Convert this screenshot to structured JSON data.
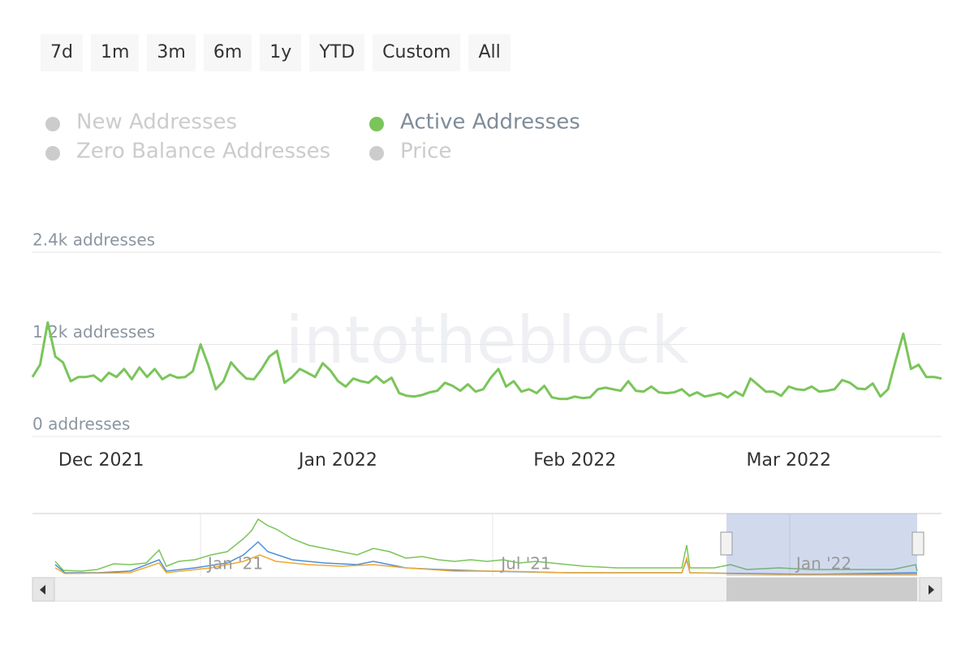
{
  "range_buttons": [
    "7d",
    "1m",
    "3m",
    "6m",
    "1y",
    "YTD",
    "Custom",
    "All"
  ],
  "watermark": "intotheblock",
  "navigator": {
    "labels": [
      "Jan '21",
      "Jul '21",
      "Jan '22"
    ]
  },
  "chart_data": {
    "type": "line",
    "categories": [
      null,
      null,
      null,
      null,
      null,
      null,
      null,
      null,
      null,
      "Dec 2021",
      null,
      null,
      null,
      null,
      null,
      null,
      null,
      null,
      null,
      null,
      null,
      null,
      null,
      null,
      null,
      null,
      null,
      null,
      null,
      null,
      null,
      null,
      null,
      null,
      null,
      null,
      null,
      null,
      null,
      null,
      "Jan 2022",
      null,
      null,
      null,
      null,
      null,
      null,
      null,
      null,
      null,
      null,
      null,
      null,
      null,
      null,
      null,
      null,
      null,
      null,
      null,
      null,
      null,
      null,
      null,
      null,
      null,
      null,
      null,
      null,
      null,
      null,
      "Feb 2022",
      null,
      null,
      null,
      null,
      null,
      null,
      null,
      null,
      null,
      null,
      null,
      null,
      null,
      null,
      null,
      null,
      null,
      null,
      null,
      null,
      null,
      null,
      null,
      null,
      null,
      null,
      null,
      "Mar 2022",
      null,
      null,
      null,
      null,
      null,
      null,
      null,
      null,
      null,
      null,
      null,
      null,
      null,
      null,
      null,
      null,
      null,
      null,
      null,
      null
    ],
    "series": [
      {
        "name": "New Addresses",
        "color": "#cccccc",
        "visible": false
      },
      {
        "name": "Zero Balance Addresses",
        "color": "#cccccc",
        "visible": false
      },
      {
        "name": "Active Addresses",
        "color": "#7ac55a",
        "visible": true,
        "values": [
          775,
          935,
          1485,
          1040,
          965,
          720,
          775,
          775,
          795,
          720,
          830,
          775,
          880,
          745,
          900,
          775,
          880,
          745,
          805,
          765,
          775,
          850,
          1200,
          935,
          615,
          720,
          965,
          850,
          755,
          745,
          880,
          1040,
          1115,
          700,
          775,
          880,
          830,
          775,
          955,
          860,
          720,
          650,
          755,
          720,
          700,
          785,
          700,
          765,
          565,
          530,
          520,
          540,
          575,
          595,
          700,
          660,
          595,
          680,
          585,
          615,
          765,
          880,
          650,
          720,
          585,
          615,
          565,
          660,
          510,
          490,
          490,
          520,
          500,
          510,
          615,
          635,
          615,
          595,
          720,
          595,
          585,
          650,
          575,
          565,
          575,
          615,
          530,
          575,
          520,
          540,
          565,
          510,
          585,
          530,
          755,
          670,
          585,
          585,
          530,
          650,
          615,
          605,
          650,
          585,
          595,
          615,
          735,
          700,
          625,
          615,
          690,
          520,
          615,
          990,
          1340,
          880,
          935,
          775,
          775,
          755
        ]
      },
      {
        "name": "Price",
        "color": "#cccccc",
        "visible": false
      }
    ],
    "ylim": [
      0,
      2400
    ],
    "yticks": [
      {
        "value": 0,
        "label": "0 addresses"
      },
      {
        "value": 1200,
        "label": "1.2k addresses"
      },
      {
        "value": 2400,
        "label": "2.4k addresses"
      }
    ],
    "grid": true
  }
}
